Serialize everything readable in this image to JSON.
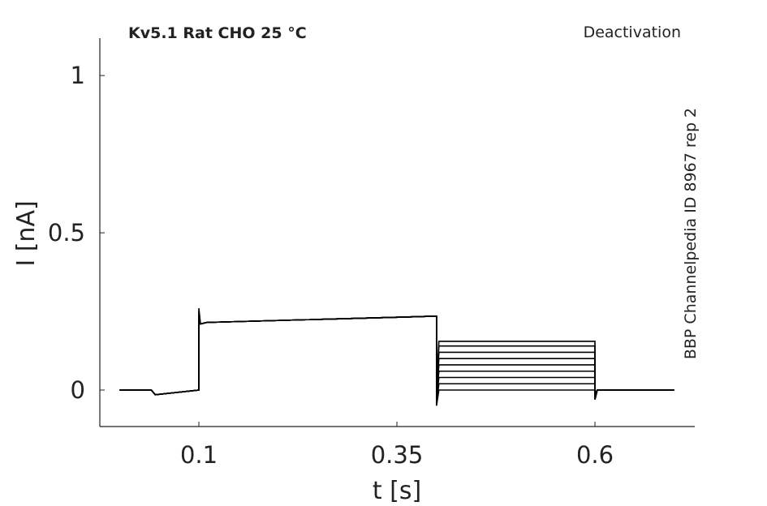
{
  "chart_data": {
    "type": "line",
    "title": "Kv5.1  Rat  CHO  25 °C",
    "subtitle": "Deactivation",
    "annotation": "BBP Channelpedia ID 8967 rep 2",
    "x_label": "t [s]",
    "y_label": "I [nA]",
    "x": [
      0,
      0.04,
      0.045,
      0.1,
      0.1,
      0.102,
      0.11,
      0.4,
      0.4,
      0.403,
      0.6,
      0.6,
      0.603,
      0.7
    ],
    "series": [
      {
        "color": "#000000",
        "values": [
          0,
          0,
          -0.015,
          0,
          0.26,
          0.21,
          0.215,
          0.235,
          -0.05,
          0.0,
          0.0,
          -0.03,
          0,
          0
        ]
      },
      {
        "color": "#000000",
        "values": [
          0,
          0,
          -0.015,
          0,
          0.25,
          0.21,
          0.215,
          0.235,
          -0.04,
          0.02,
          0.02,
          -0.03,
          0,
          0
        ]
      },
      {
        "color": "#000000",
        "values": [
          0,
          0,
          -0.015,
          0,
          0.24,
          0.21,
          0.215,
          0.235,
          -0.03,
          0.04,
          0.04,
          -0.03,
          0,
          0
        ]
      },
      {
        "color": "#000000",
        "values": [
          0,
          0,
          -0.015,
          0,
          0.24,
          0.21,
          0.215,
          0.235,
          -0.02,
          0.06,
          0.06,
          -0.02,
          0,
          0
        ]
      },
      {
        "color": "#000000",
        "values": [
          0,
          0,
          -0.015,
          0,
          0.23,
          0.21,
          0.215,
          0.235,
          -0.02,
          0.08,
          0.08,
          -0.02,
          0,
          0
        ]
      },
      {
        "color": "#000000",
        "values": [
          0,
          0,
          -0.015,
          0,
          0.23,
          0.21,
          0.215,
          0.235,
          -0.01,
          0.1,
          0.1,
          -0.02,
          0,
          0
        ]
      },
      {
        "color": "#000000",
        "values": [
          0,
          0,
          -0.015,
          0,
          0.22,
          0.21,
          0.215,
          0.235,
          -0.01,
          0.12,
          0.12,
          -0.01,
          0,
          0
        ]
      },
      {
        "color": "#000000",
        "values": [
          0,
          0,
          -0.015,
          0,
          0.22,
          0.21,
          0.215,
          0.235,
          0.0,
          0.14,
          0.14,
          -0.01,
          0,
          0
        ]
      },
      {
        "color": "#000000",
        "values": [
          0,
          0,
          -0.015,
          0,
          0.22,
          0.21,
          0.215,
          0.235,
          0.0,
          0.155,
          0.155,
          -0.01,
          0,
          0
        ]
      }
    ],
    "xlim": [
      -0.025,
      0.726
    ],
    "ylim": [
      -0.116,
      1.119
    ],
    "xticks": [
      0.1,
      0.35,
      0.6
    ],
    "yticks": [
      0,
      0.5,
      1
    ]
  }
}
